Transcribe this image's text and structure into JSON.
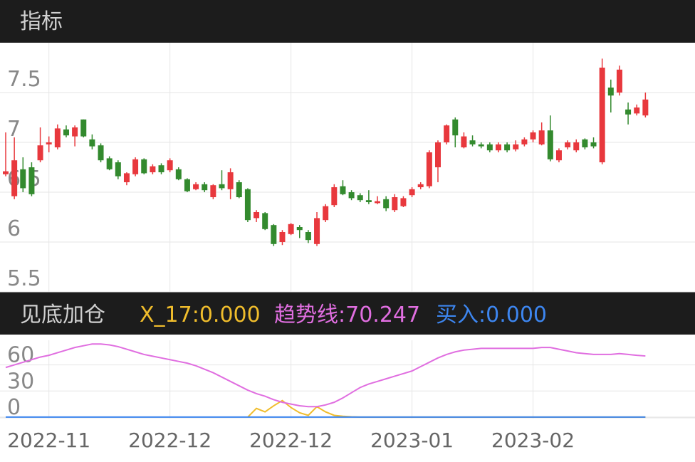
{
  "chart_data": [
    {
      "type": "candlestick",
      "title": "指标",
      "categories": [
        null,
        null,
        null,
        null,
        null,
        "2022-11",
        null,
        null,
        null,
        null,
        null,
        null,
        null,
        null,
        null,
        null,
        null,
        null,
        null,
        "2022-12",
        null,
        null,
        null,
        null,
        null,
        null,
        null,
        null,
        null,
        null,
        null,
        null,
        null,
        "2022-12",
        null,
        null,
        null,
        null,
        null,
        null,
        null,
        null,
        null,
        null,
        null,
        null,
        null,
        "2023-01",
        null,
        null,
        null,
        null,
        null,
        null,
        null,
        null,
        null,
        null,
        null,
        null,
        null,
        "2023-02",
        null,
        null,
        null,
        null,
        null,
        null,
        null,
        null,
        null,
        null,
        null,
        null,
        null
      ],
      "open": [
        6.68,
        6.46,
        6.73,
        6.75,
        6.82,
        6.98,
        6.95,
        7.13,
        7.06,
        7.23,
        7.03,
        6.97,
        6.84,
        6.8,
        6.6,
        6.68,
        6.83,
        6.7,
        6.77,
        6.72,
        6.73,
        6.63,
        6.53,
        6.58,
        6.45,
        6.58,
        6.53,
        6.6,
        6.53,
        6.24,
        6.29,
        6.17,
        6.0,
        6.08,
        6.15,
        6.1,
        5.98,
        6.22,
        6.37,
        6.56,
        6.5,
        6.47,
        6.42,
        6.39,
        6.43,
        6.32,
        6.36,
        6.47,
        6.55,
        6.56,
        6.75,
        7.0,
        7.23,
        6.95,
        7.02,
        6.98,
        6.98,
        6.92,
        6.98,
        6.93,
        6.98,
        7.03,
        6.98,
        7.12,
        6.82,
        6.95,
        6.92,
        7.03,
        7.0,
        6.8,
        7.55,
        7.5,
        7.33,
        7.29,
        7.27
      ],
      "close": [
        6.71,
        6.82,
        6.54,
        6.48,
        6.97,
        7.0,
        7.14,
        7.07,
        7.15,
        7.06,
        6.96,
        6.82,
        6.73,
        6.66,
        6.69,
        6.83,
        6.69,
        6.76,
        6.7,
        6.82,
        6.63,
        6.51,
        6.58,
        6.52,
        6.57,
        6.54,
        6.7,
        6.45,
        6.22,
        6.3,
        6.13,
        5.98,
        6.1,
        6.18,
        6.12,
        6.02,
        6.24,
        6.36,
        6.55,
        6.48,
        6.44,
        6.42,
        6.4,
        6.41,
        6.34,
        6.45,
        6.44,
        6.53,
        6.58,
        6.9,
        7.0,
        7.17,
        7.07,
        7.06,
        6.98,
        6.96,
        6.92,
        6.98,
        6.92,
        6.98,
        7.03,
        7.1,
        7.12,
        6.83,
        6.92,
        7.0,
        7.0,
        6.95,
        6.96,
        7.75,
        7.47,
        7.73,
        7.28,
        7.35,
        7.43
      ],
      "high": [
        7.1,
        7.05,
        6.85,
        6.8,
        7.15,
        7.06,
        7.18,
        7.17,
        7.17,
        7.23,
        7.08,
        6.99,
        6.86,
        6.82,
        6.7,
        6.85,
        6.84,
        6.78,
        6.79,
        6.84,
        6.75,
        6.64,
        6.6,
        6.6,
        6.58,
        6.72,
        6.74,
        6.62,
        6.54,
        6.32,
        6.3,
        6.18,
        6.12,
        6.19,
        6.17,
        6.12,
        6.3,
        6.38,
        6.58,
        6.62,
        6.52,
        6.49,
        6.52,
        6.46,
        6.46,
        6.48,
        6.46,
        6.55,
        6.6,
        6.92,
        7.02,
        7.18,
        7.25,
        7.1,
        7.07,
        7.0,
        7.0,
        7.0,
        7.0,
        7.02,
        7.05,
        7.12,
        7.2,
        7.27,
        6.94,
        7.02,
        7.03,
        7.04,
        7.05,
        7.84,
        7.63,
        7.77,
        7.4,
        7.38,
        7.5
      ],
      "low": [
        6.66,
        6.43,
        6.5,
        6.46,
        6.8,
        6.9,
        6.93,
        7.05,
        6.96,
        7.05,
        6.93,
        6.8,
        6.72,
        6.63,
        6.57,
        6.66,
        6.68,
        6.68,
        6.68,
        6.7,
        6.62,
        6.5,
        6.52,
        6.5,
        6.43,
        6.52,
        6.43,
        6.44,
        6.2,
        6.2,
        6.12,
        5.96,
        5.97,
        6.07,
        6.04,
        5.99,
        5.96,
        6.2,
        6.35,
        6.47,
        6.42,
        6.4,
        6.38,
        6.38,
        6.31,
        6.3,
        6.35,
        6.45,
        6.53,
        6.54,
        6.6,
        6.98,
        6.95,
        6.94,
        6.96,
        6.94,
        6.9,
        6.9,
        6.9,
        6.91,
        6.96,
        7.0,
        6.97,
        6.81,
        6.8,
        6.93,
        6.9,
        6.93,
        6.94,
        6.78,
        7.3,
        7.47,
        7.18,
        7.27,
        7.25
      ],
      "up_color": "#e8383d",
      "down_color": "#338a2e",
      "ylim": [
        5.5,
        8.0
      ],
      "yticks": [
        5.5,
        6,
        6.5,
        7,
        7.5
      ],
      "grid": true
    },
    {
      "type": "line",
      "title": "见底加仓",
      "series": [
        {
          "legend": "X_17:0.000",
          "color": "#f0bd2c",
          "values": [
            null,
            null,
            null,
            null,
            null,
            null,
            null,
            null,
            null,
            null,
            null,
            null,
            null,
            null,
            null,
            null,
            null,
            null,
            null,
            null,
            null,
            null,
            null,
            null,
            null,
            null,
            null,
            null,
            0,
            10,
            6,
            13,
            19,
            11,
            5,
            2,
            12,
            6,
            2,
            1,
            0.3,
            0,
            0,
            0,
            0,
            0,
            0,
            0,
            0,
            0,
            0,
            0,
            0,
            0,
            0,
            0,
            0,
            0,
            0,
            0,
            0,
            0,
            0,
            0,
            0,
            0,
            0,
            0,
            0,
            0,
            0,
            0,
            0,
            0,
            0
          ]
        },
        {
          "legend": "趋势线:70.247",
          "color": "#e06ee0",
          "values": [
            57,
            60,
            63,
            66,
            69,
            71,
            74,
            77,
            80,
            82,
            84,
            84,
            83,
            81,
            78,
            75,
            72,
            70,
            68,
            66,
            64,
            62,
            59,
            55,
            51,
            46,
            41,
            36,
            31,
            27,
            24,
            20,
            17,
            15,
            13,
            12,
            12,
            14,
            17,
            22,
            28,
            34,
            38,
            41,
            44,
            47,
            50,
            53,
            58,
            63,
            68,
            72,
            75,
            77,
            78,
            79,
            79,
            79,
            79,
            79,
            79,
            79,
            80,
            80,
            78,
            76,
            74,
            73,
            72,
            72,
            72,
            73,
            72,
            71,
            70.247
          ]
        },
        {
          "legend": "买入:0.000",
          "color": "#3d86f0",
          "values": [
            0,
            0,
            0,
            0,
            0,
            0,
            0,
            0,
            0,
            0,
            0,
            0,
            0,
            0,
            0,
            0,
            0,
            0,
            0,
            0,
            0,
            0,
            0,
            0,
            0,
            0,
            0,
            0,
            0,
            0,
            0,
            0,
            0,
            0,
            0,
            0,
            0,
            0,
            0,
            0,
            0,
            0,
            0,
            0,
            0,
            0,
            0,
            0,
            0,
            0,
            0,
            0,
            0,
            0,
            0,
            0,
            0,
            0,
            0,
            0,
            0,
            0,
            0,
            0,
            0,
            0,
            0,
            0,
            0,
            0,
            0,
            0,
            0,
            0,
            0
          ]
        }
      ],
      "ylim": [
        -1.7,
        88.3
      ],
      "yticks": [
        0,
        30,
        60
      ],
      "grid": true
    }
  ]
}
